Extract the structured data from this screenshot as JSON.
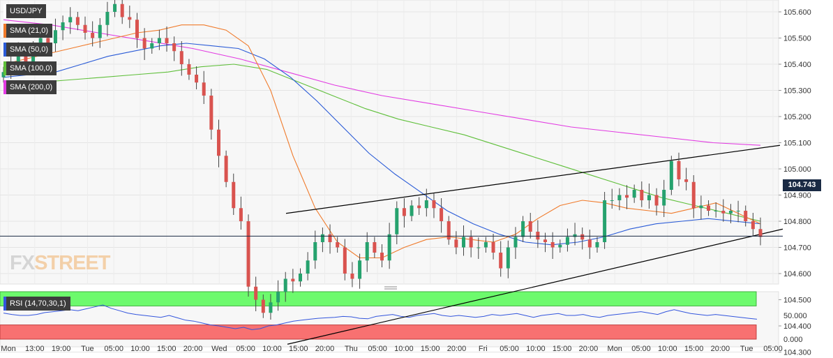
{
  "symbol": "USD/JPY",
  "indicators": [
    {
      "label": "SMA (21,0)",
      "color": "#f07a2a"
    },
    {
      "label": "SMA (50,0)",
      "color": "#2a5bd7"
    },
    {
      "label": "SMA (100,0)",
      "color": "#5fbf3a"
    },
    {
      "label": "SMA (200,0)",
      "color": "#e23be2"
    }
  ],
  "rsi_label": "RSI (14,70,30,1)",
  "last_price": "104.743",
  "logo": {
    "part1": "FX",
    "part2": "STREET"
  },
  "colors": {
    "up": "#26a26e",
    "down": "#d9534f",
    "rsi": "#3355dd",
    "overbought": "#6dfa6d",
    "oversold": "#f87171"
  },
  "chart_data": {
    "type": "candlestick",
    "title": "USD/JPY",
    "y_ticks": [
      "105.600",
      "105.500",
      "105.400",
      "105.300",
      "105.200",
      "105.100",
      "105.000",
      "104.900",
      "104.800",
      "104.700",
      "104.600",
      "104.500",
      "104.400",
      "104.300"
    ],
    "ylim": [
      104.25,
      105.65
    ],
    "x_ticks": [
      "Mon",
      "13:00",
      "19:00",
      "Tue",
      "05:00",
      "10:00",
      "15:00",
      "20:00",
      "Wed",
      "05:00",
      "10:00",
      "15:00",
      "20:00",
      "Thu",
      "05:00",
      "10:00",
      "15:00",
      "20:00",
      "Fri",
      "05:00",
      "10:00",
      "15:00",
      "20:00",
      "Mon",
      "05:00",
      "10:00",
      "15:00",
      "20:00",
      "Tue",
      "05:00"
    ],
    "last_value": 104.743,
    "close_series": [
      105.37,
      105.4,
      105.44,
      105.41,
      105.45,
      105.5,
      105.48,
      105.53,
      105.56,
      105.58,
      105.55,
      105.52,
      105.5,
      105.55,
      105.6,
      105.63,
      105.58,
      105.57,
      105.5,
      105.46,
      105.48,
      105.5,
      105.48,
      105.45,
      105.4,
      105.36,
      105.33,
      105.28,
      105.15,
      105.05,
      104.95,
      104.85,
      104.8,
      104.55,
      104.5,
      104.45,
      104.49,
      104.53,
      104.58,
      104.57,
      104.6,
      104.65,
      104.72,
      104.75,
      104.72,
      104.7,
      104.6,
      104.58,
      104.65,
      104.72,
      104.68,
      104.65,
      104.75,
      104.85,
      104.82,
      104.86,
      104.85,
      104.88,
      104.85,
      104.8,
      104.73,
      104.7,
      104.74,
      104.7,
      104.7,
      104.72,
      104.68,
      104.62,
      104.7,
      104.74,
      104.8,
      104.76,
      104.73,
      104.72,
      104.7,
      104.71,
      104.74,
      104.75,
      104.73,
      104.7,
      104.72,
      104.88,
      104.88,
      104.9,
      104.89,
      104.92,
      104.88,
      104.9,
      104.86,
      104.92,
      105.03,
      104.96,
      104.95,
      104.85,
      104.86,
      104.84,
      104.84,
      104.83,
      104.84,
      104.84,
      104.8,
      104.77,
      104.74
    ],
    "sma_21": [
      105.4,
      105.42,
      105.44,
      105.46,
      105.48,
      105.5,
      105.52,
      105.53,
      105.55,
      105.55,
      105.53,
      105.47,
      105.3,
      105.05,
      104.85,
      104.72,
      104.66,
      104.66,
      104.7,
      104.73,
      104.74,
      104.73,
      104.72,
      104.75,
      104.81,
      104.86,
      104.88,
      104.87,
      104.85,
      104.84,
      104.83,
      104.85,
      104.87,
      104.83,
      104.79
    ],
    "sma_50": [
      105.35,
      105.36,
      105.37,
      105.4,
      105.43,
      105.45,
      105.47,
      105.48,
      105.47,
      105.46,
      105.42,
      105.35,
      105.26,
      105.16,
      105.06,
      104.98,
      104.91,
      104.84,
      104.79,
      104.75,
      104.72,
      104.71,
      104.72,
      104.74,
      104.77,
      104.79,
      104.8,
      104.81,
      104.8,
      104.79
    ],
    "sma_100": [
      105.32,
      105.33,
      105.34,
      105.35,
      105.36,
      105.37,
      105.39,
      105.4,
      105.38,
      105.33,
      105.28,
      105.23,
      105.19,
      105.16,
      105.13,
      105.09,
      105.05,
      105.01,
      104.97,
      104.93,
      104.89,
      104.86,
      104.83,
      104.8
    ],
    "sma_200": [
      105.57,
      105.55,
      105.52,
      105.49,
      105.46,
      105.42,
      105.37,
      105.32,
      105.28,
      105.25,
      105.22,
      105.19,
      105.16,
      105.14,
      105.12,
      105.1,
      105.09
    ],
    "channel_upper": [
      [
        104.83,
        105.09
      ]
    ],
    "channel_lower": [
      [
        104.33,
        104.77
      ]
    ],
    "rsi_range": [
      0,
      100
    ],
    "rsi_ticks": [
      "50.000",
      "0.000"
    ],
    "rsi_levels": [
      70,
      30
    ],
    "rsi_series": [
      55,
      52,
      50,
      50,
      52,
      56,
      58,
      60,
      62,
      60,
      64,
      68,
      72,
      65,
      60,
      55,
      52,
      50,
      48,
      46,
      50,
      45,
      40,
      38,
      34,
      30,
      28,
      25,
      22,
      25,
      20,
      22,
      28,
      30,
      34,
      38,
      40,
      42,
      44,
      45,
      46,
      48,
      47,
      44,
      43,
      48,
      50,
      52,
      48,
      46,
      50,
      52,
      54,
      50,
      48,
      50,
      48,
      46,
      48,
      52,
      50,
      52,
      54,
      50,
      46,
      50,
      52,
      54,
      50,
      50,
      52,
      48,
      46,
      50,
      52,
      54,
      56,
      58,
      55,
      52,
      58,
      62,
      58,
      54,
      52,
      50,
      52,
      50,
      48,
      46,
      44,
      42
    ]
  }
}
